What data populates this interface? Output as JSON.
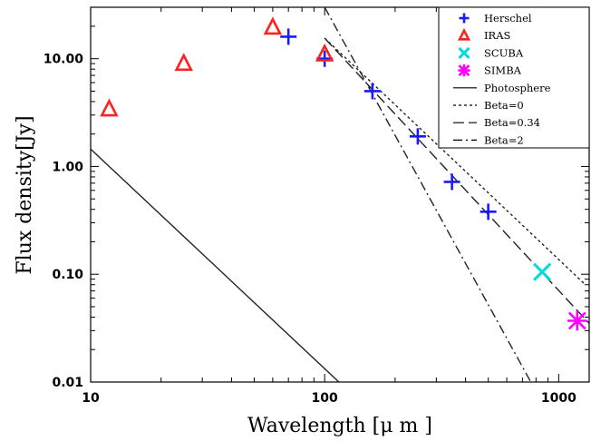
{
  "chart_data": {
    "type": "scatter",
    "xscale": "log",
    "yscale": "log",
    "xlim": [
      10,
      1350
    ],
    "ylim": [
      0.01,
      30
    ],
    "xlabel": "Wavelength [μ m ]",
    "ylabel": "Flux density[Jy]",
    "xtick_labels": [
      {
        "value": 10,
        "label": "10"
      },
      {
        "value": 100,
        "label": "100"
      },
      {
        "value": 1000,
        "label": "1000"
      }
    ],
    "ytick_labels": [
      {
        "value": 0.01,
        "label": "0.01"
      },
      {
        "value": 0.1,
        "label": "0.10"
      },
      {
        "value": 1,
        "label": "1.00"
      },
      {
        "value": 10,
        "label": "10.00"
      }
    ],
    "grid": false,
    "legend_position": "top-right",
    "series": [
      {
        "name": "Herschel",
        "marker": "plus",
        "color": "#1a1aff",
        "x": [
          70,
          100,
          160,
          250,
          350,
          500
        ],
        "y": [
          16,
          10,
          5,
          1.9,
          0.72,
          0.38
        ]
      },
      {
        "name": "IRAS",
        "marker": "triangle",
        "color": "#ff2020",
        "x": [
          12,
          25,
          60,
          100
        ],
        "y": [
          3.4,
          9,
          19.5,
          11
        ]
      },
      {
        "name": "SCUBA",
        "marker": "x",
        "color": "#00dcdc",
        "x": [
          850
        ],
        "y": [
          0.105
        ]
      },
      {
        "name": "SIMBA",
        "marker": "asterisk",
        "color": "#ff00ff",
        "x": [
          1200
        ],
        "y": [
          0.037
        ]
      }
    ],
    "models": [
      {
        "name": "Photosphere",
        "style": "solid",
        "x": [
          10,
          115
        ],
        "y": [
          1.45,
          0.01
        ]
      },
      {
        "name": "Beta=0",
        "style": "dotted",
        "x": [
          100,
          1300
        ],
        "y": [
          15.5,
          0.08
        ]
      },
      {
        "name": "Beta=0.34",
        "style": "dashed",
        "x": [
          100,
          1350
        ],
        "y": [
          15.5,
          0.035
        ]
      },
      {
        "name": "Beta=2",
        "style": "dashdot",
        "x": [
          100,
          760
        ],
        "y": [
          30,
          0.01
        ]
      }
    ]
  }
}
